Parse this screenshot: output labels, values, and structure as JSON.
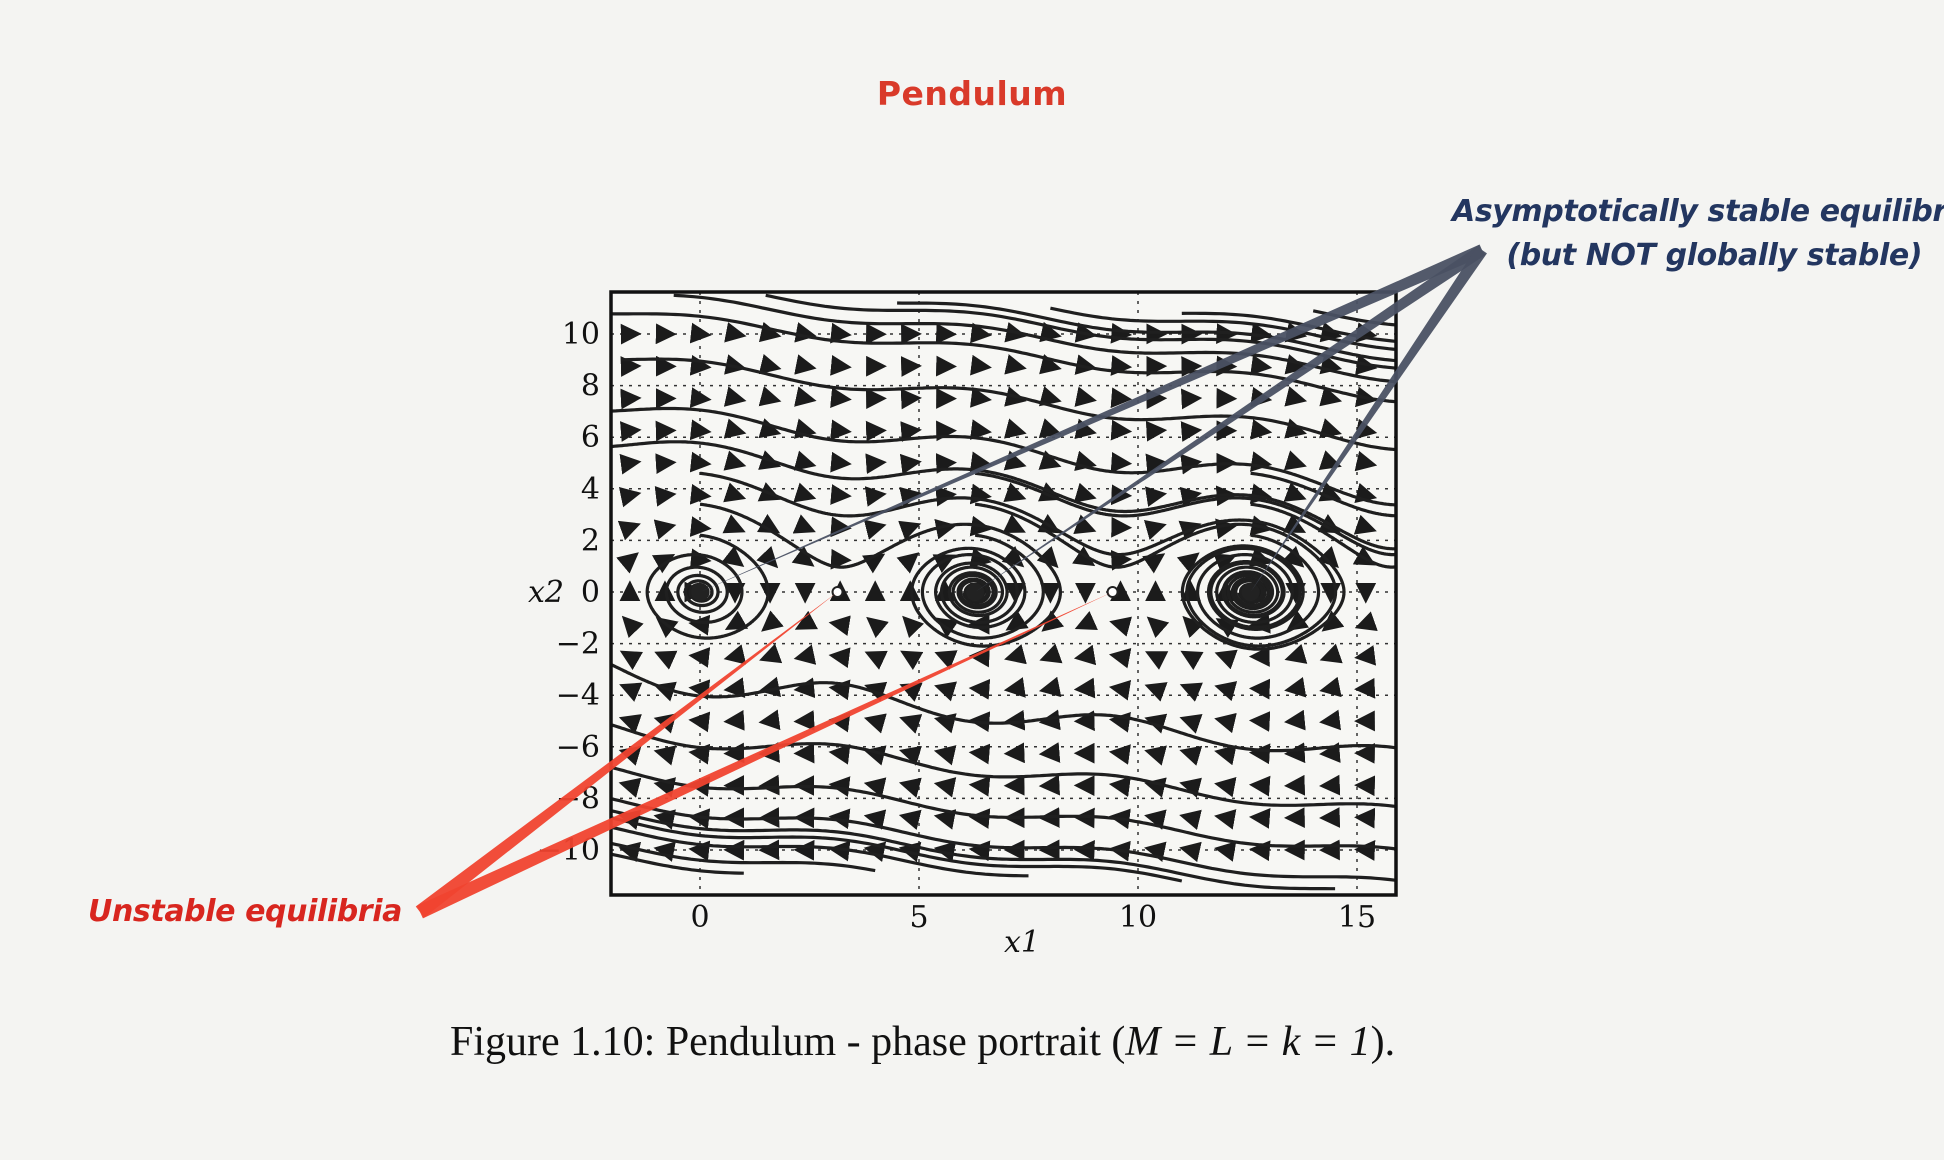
{
  "title": "Pendulum",
  "annotations": {
    "stable_line1": "Asymptotically stable equilibria",
    "stable_line2": "(but NOT globally stable)",
    "unstable": "Unstable equilibria"
  },
  "caption": {
    "prefix": "Figure 1.10: Pendulum - phase portrait (",
    "math": "M = L = k = 1",
    "suffix": ")."
  },
  "colors": {
    "title": "#d93a2a",
    "stable_annotation": "#233660",
    "stable_arrow": "#4a5163",
    "unstable_annotation": "#d8261f",
    "unstable_arrow": "#f0432f"
  },
  "chart_data": {
    "type": "diagram",
    "xlabel": "x1",
    "ylabel": "x2",
    "x_ticks": [
      "0",
      "5",
      "10",
      "15"
    ],
    "y_ticks": [
      "10",
      "8",
      "6",
      "4",
      "2",
      "0",
      "−2",
      "−4",
      "−6",
      "−8",
      "−10"
    ],
    "xlim": [
      -2,
      16
    ],
    "ylim": [
      -11,
      11
    ],
    "stable_equilibria": [
      0,
      6.28,
      12.57
    ],
    "unstable_equilibria": [
      3.14,
      9.42
    ]
  }
}
